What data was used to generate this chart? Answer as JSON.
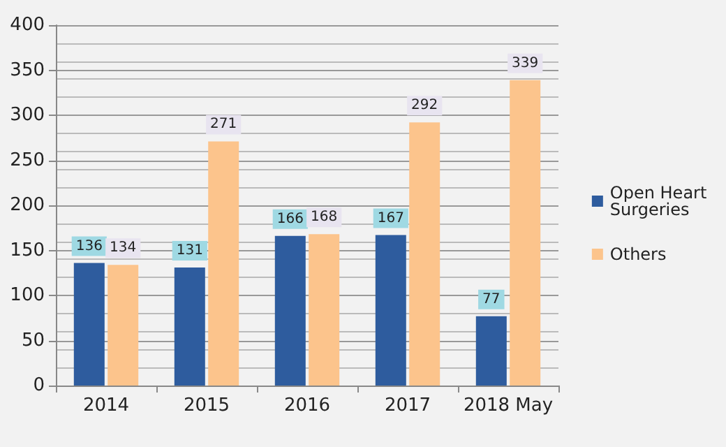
{
  "chart_data": {
    "type": "bar",
    "categories": [
      "2014",
      "2015",
      "2016",
      "2017",
      "2018 May"
    ],
    "series": [
      {
        "name": "Open Heart Surgeries",
        "color": "#2e5c9e",
        "values": [
          136,
          131,
          166,
          167,
          77
        ]
      },
      {
        "name": "Others",
        "color": "#fcc48c",
        "values": [
          134,
          271,
          168,
          292,
          339
        ]
      }
    ],
    "ylim": [
      0,
      400
    ],
    "yticks": [
      0,
      50,
      100,
      150,
      200,
      250,
      300,
      350,
      400
    ],
    "grid": "y",
    "legend": "right",
    "data_labels": true
  }
}
